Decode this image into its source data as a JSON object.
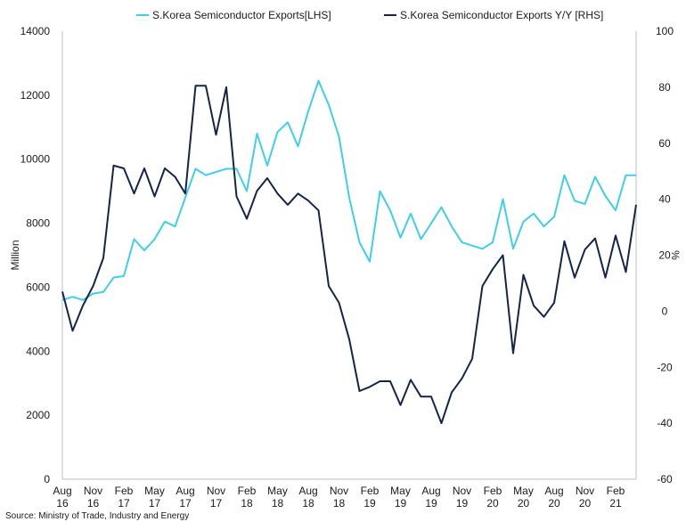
{
  "chart_data": {
    "type": "line",
    "x": [
      "Aug 16",
      "Sep 16",
      "Oct 16",
      "Nov 16",
      "Dec 16",
      "Jan 17",
      "Feb 17",
      "Mar 17",
      "Apr 17",
      "May 17",
      "Jun 17",
      "Jul 17",
      "Aug 17",
      "Sep 17",
      "Oct 17",
      "Nov 17",
      "Dec 17",
      "Jan 18",
      "Feb 18",
      "Mar 18",
      "Apr 18",
      "May 18",
      "Jun 18",
      "Jul 18",
      "Aug 18",
      "Sep 18",
      "Oct 18",
      "Nov 18",
      "Dec 18",
      "Jan 19",
      "Feb 19",
      "Mar 19",
      "Apr 19",
      "May 19",
      "Jun 19",
      "Jul 19",
      "Aug 19",
      "Sep 19",
      "Oct 19",
      "Nov 19",
      "Dec 19",
      "Jan 20",
      "Feb 20",
      "Mar 20",
      "Apr 20",
      "May 20",
      "Jun 20",
      "Jul 20",
      "Aug 20",
      "Sep 20",
      "Oct 20",
      "Nov 20",
      "Dec 20",
      "Jan 21",
      "Feb 21",
      "Mar 21",
      "Apr 21"
    ],
    "x_tick_labels": [
      [
        "Aug",
        "16"
      ],
      [
        "Nov",
        "16"
      ],
      [
        "Feb",
        "17"
      ],
      [
        "May",
        "17"
      ],
      [
        "Aug",
        "17"
      ],
      [
        "Nov",
        "17"
      ],
      [
        "Feb",
        "18"
      ],
      [
        "May",
        "18"
      ],
      [
        "Aug",
        "18"
      ],
      [
        "Nov",
        "18"
      ],
      [
        "Feb",
        "19"
      ],
      [
        "May",
        "19"
      ],
      [
        "Aug",
        "19"
      ],
      [
        "Nov",
        "19"
      ],
      [
        "Feb",
        "20"
      ],
      [
        "May",
        "20"
      ],
      [
        "Aug",
        "20"
      ],
      [
        "Nov",
        "20"
      ],
      [
        "Feb",
        "21"
      ]
    ],
    "series": [
      {
        "name": "S.Korea Semiconductor Exports[LHS]",
        "axis": "left",
        "color": "#3ecfea",
        "values": [
          5600,
          5700,
          5600,
          5800,
          5850,
          6300,
          6350,
          7500,
          7150,
          7500,
          8050,
          7900,
          8800,
          9700,
          9500,
          9600,
          9700,
          9700,
          9000,
          10800,
          9800,
          10850,
          11150,
          10400,
          11500,
          12450,
          11700,
          10700,
          8800,
          7400,
          6800,
          9000,
          8400,
          7550,
          8300,
          7500,
          8000,
          8500,
          7900,
          7400,
          7300,
          7200,
          7400,
          8750,
          7200,
          8050,
          8300,
          7900,
          8200,
          9500,
          8700,
          8600,
          9450,
          8850,
          8400,
          9500,
          9500
        ]
      },
      {
        "name": "S.Korea Semiconductor Exports Y/Y [RHS]",
        "axis": "right",
        "color": "#14244a",
        "values": [
          7,
          -7,
          2,
          9,
          19,
          52,
          51,
          42,
          51,
          41,
          51,
          48,
          42,
          80.5,
          80.5,
          63,
          80,
          41,
          33,
          43,
          47.5,
          42,
          38,
          42,
          39.5,
          36,
          9,
          3,
          -10,
          -28.5,
          -27,
          -25,
          -25,
          -33.5,
          -24.5,
          -30.5,
          -30.5,
          -40,
          -29,
          -24,
          -17,
          9,
          15,
          20,
          -15,
          13,
          2,
          -2,
          3,
          25,
          12,
          22,
          26,
          12,
          27,
          14,
          38
        ]
      }
    ],
    "ylabel": "Million",
    "y2label": "%",
    "ylim": [
      0,
      14000
    ],
    "y_ticks": [
      0,
      2000,
      4000,
      6000,
      8000,
      10000,
      12000,
      14000
    ],
    "y2lim": [
      -60,
      100
    ],
    "y2_ticks": [
      -60,
      -40,
      -20,
      0,
      20,
      40,
      60,
      80,
      100
    ],
    "grid": false,
    "legend_position": "top"
  },
  "source": "Source: Ministry of Trade, Industry and Energy"
}
